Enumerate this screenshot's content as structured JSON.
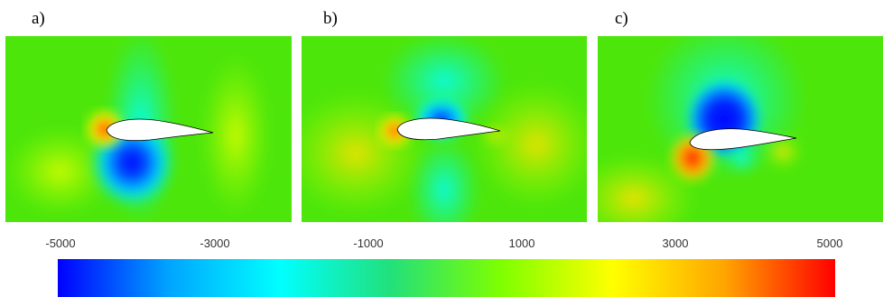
{
  "panels": [
    {
      "label": "a)"
    },
    {
      "label": "b)"
    },
    {
      "label": "c)"
    }
  ],
  "colorbar": {
    "ticks": [
      "-5000",
      "-3000",
      "-1000",
      "1000",
      "3000",
      "5000"
    ],
    "colors": [
      "#0000ff",
      "#00a5ff",
      "#00ffff",
      "#22e07a",
      "#7fff00",
      "#ffff00",
      "#ffa500",
      "#ff0000"
    ]
  }
}
